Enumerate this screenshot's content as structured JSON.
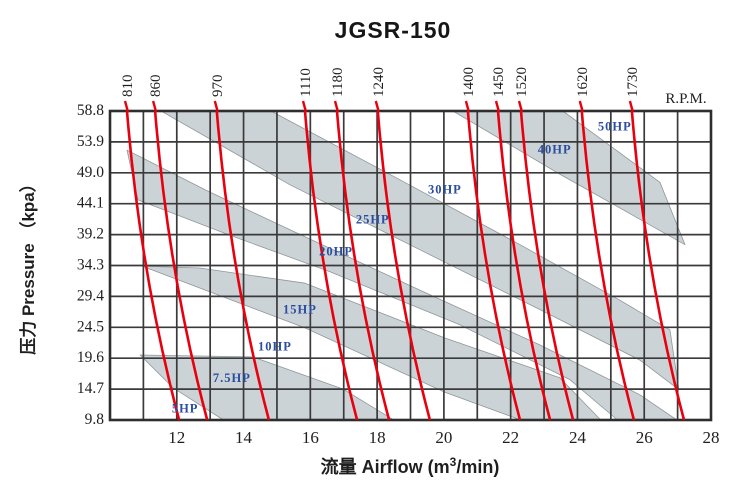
{
  "title": "JGSR-150",
  "axes": {
    "rpm_unit_label": "R.P.M.",
    "y_title": "压力 Pressure （kpa）",
    "x_title_part1": "流量 Airflow (m",
    "x_title_sup": "3",
    "x_title_part2": "/min)"
  },
  "chart_data": {
    "type": "line",
    "title": "JGSR-150",
    "xlabel": "流量 Airflow (m³/min)",
    "ylabel": "压力 Pressure (kpa)",
    "x_range": [
      10,
      28
    ],
    "y_range": [
      9.8,
      58.8
    ],
    "grid": "on",
    "x_ticks": [
      12,
      14,
      16,
      18,
      20,
      22,
      24,
      26,
      28
    ],
    "y_ticks": [
      58.8,
      53.9,
      49.0,
      44.1,
      39.2,
      34.3,
      29.4,
      24.5,
      19.6,
      14.7,
      9.8
    ],
    "rpm_lines": [
      {
        "rpm": "810",
        "q_top": 10.51,
        "q_bottom": 12.07
      },
      {
        "rpm": "860",
        "q_top": 11.35,
        "q_bottom": 12.91
      },
      {
        "rpm": "970",
        "q_top": 13.2,
        "q_bottom": 14.76
      },
      {
        "rpm": "1110",
        "q_top": 15.84,
        "q_bottom": 17.4
      },
      {
        "rpm": "1180",
        "q_top": 16.8,
        "q_bottom": 18.36
      },
      {
        "rpm": "1240",
        "q_top": 18.02,
        "q_bottom": 19.58
      },
      {
        "rpm": "1400",
        "q_top": 20.72,
        "q_bottom": 22.28
      },
      {
        "rpm": "1450",
        "q_top": 21.62,
        "q_bottom": 23.18
      },
      {
        "rpm": "1520",
        "q_top": 22.31,
        "q_bottom": 23.87
      },
      {
        "rpm": "1620",
        "q_top": 24.13,
        "q_bottom": 25.69
      },
      {
        "rpm": "1730",
        "q_top": 25.63,
        "q_bottom": 27.19
      }
    ],
    "hp_labels": [
      {
        "label": "5HP",
        "q": 12.25,
        "p": 11.7
      },
      {
        "label": "7.5HP",
        "q": 13.65,
        "p": 16.5
      },
      {
        "label": "10HP",
        "q": 14.94,
        "p": 21.5
      },
      {
        "label": "15HP",
        "q": 15.69,
        "p": 27.4
      },
      {
        "label": "20HP",
        "q": 16.77,
        "p": 36.6
      },
      {
        "label": "25HP",
        "q": 17.87,
        "p": 41.7
      },
      {
        "label": "30HP",
        "q": 20.03,
        "p": 46.4
      },
      {
        "label": "40HP",
        "q": 23.32,
        "p": 52.8
      },
      {
        "label": "50HP",
        "q": 25.12,
        "p": 56.4
      }
    ],
    "power_bands": [
      {
        "name": "7.5HP",
        "points": [
          [
            10.9,
            20.1
          ],
          [
            11.89,
            14.9
          ],
          [
            13.4,
            9.8
          ],
          [
            18.5,
            9.8
          ],
          [
            16.98,
            14.7
          ],
          [
            14.28,
            19.8
          ]
        ]
      },
      {
        "name": "15HP",
        "points": [
          [
            10.96,
            34.2
          ],
          [
            15.84,
            24.4
          ],
          [
            20.03,
            14.2
          ],
          [
            22.3,
            9.8
          ],
          [
            24.7,
            9.8
          ],
          [
            23.47,
            16.5
          ],
          [
            20.03,
            22.8
          ],
          [
            15.84,
            31.5
          ],
          [
            12.69,
            33.9
          ]
        ]
      },
      {
        "name": "20HP",
        "points": [
          [
            10.51,
            52.6
          ],
          [
            12.93,
            46.1
          ],
          [
            15.54,
            39.6
          ],
          [
            19.28,
            30.4
          ],
          [
            22.88,
            21.7
          ],
          [
            25.87,
            13.8
          ],
          [
            26.98,
            9.8
          ],
          [
            25.2,
            9.8
          ],
          [
            23.77,
            16.2
          ],
          [
            20.48,
            24.9
          ],
          [
            16.59,
            33.3
          ],
          [
            13.59,
            39.1
          ],
          [
            10.84,
            44.7
          ]
        ]
      },
      {
        "name": "25HP",
        "points": [
          [
            11.53,
            58.8
          ],
          [
            15.39,
            47.1
          ],
          [
            19.28,
            36.8
          ],
          [
            22.88,
            27.3
          ],
          [
            25.87,
            19.3
          ],
          [
            27.04,
            14.6
          ],
          [
            26.77,
            24.1
          ],
          [
            25.27,
            28.8
          ],
          [
            22.28,
            37.6
          ],
          [
            18.68,
            47.9
          ],
          [
            14.82,
            58.8
          ]
        ]
      },
      {
        "name": "40HP",
        "points": [
          [
            20.27,
            58.8
          ],
          [
            23.47,
            48.8
          ],
          [
            27.22,
            37.6
          ],
          [
            26.47,
            47.5
          ],
          [
            23.56,
            58.8
          ]
        ]
      }
    ],
    "colors": {
      "rpm_line": "#e8000f",
      "band_fill": "#ccd3d6",
      "band_edge": "#8f979b",
      "grid": "#3a3a3a",
      "hp_label": "#2b4da0",
      "text": "#1f1f1f"
    }
  }
}
